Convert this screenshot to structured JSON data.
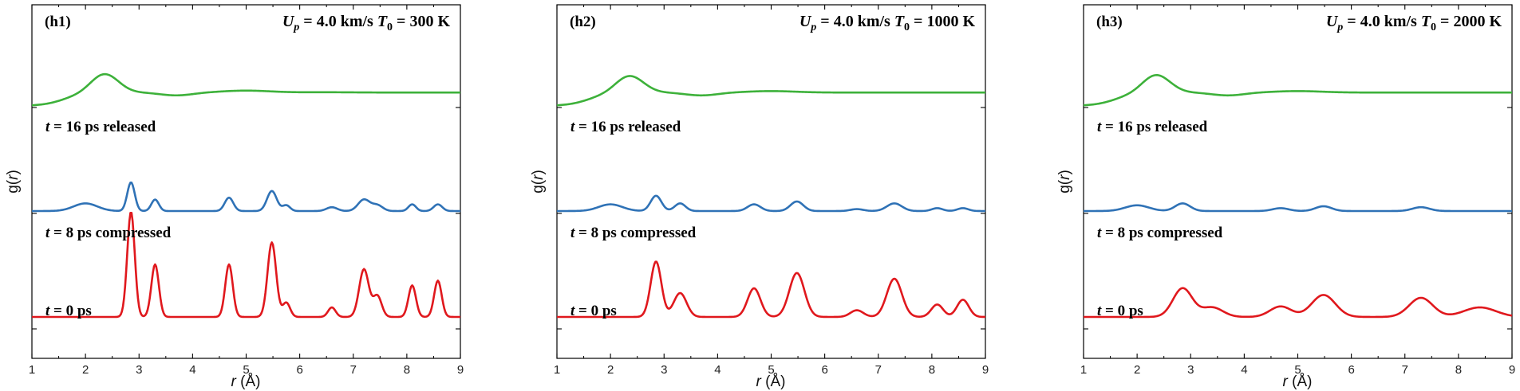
{
  "chart_data": [
    {
      "type": "line",
      "panel": "(h1)",
      "title": "U_p = 4.0 km/s T_0 = 300 K",
      "title_parts": {
        "U": "U",
        "p": "p",
        "mid": " = 4.0 km/s ",
        "T": "T",
        "zero": "0",
        "tail": " = 300 K"
      },
      "xlabel": "r (Å)",
      "xlabel_parts": {
        "var": "r",
        "unit": " (Å)"
      },
      "ylabel": "g(r)",
      "ylabel_parts": {
        "pre": "g(",
        "var": "r",
        "post": ")"
      },
      "xlim": [
        1,
        9
      ],
      "xticks": [
        "1",
        "2",
        "3",
        "4",
        "5",
        "6",
        "7",
        "8",
        "9"
      ],
      "series": [
        {
          "name": "t = 16 ps released",
          "t_label": "t",
          "rest_label": " = 16 ps released",
          "color": "#3db13a",
          "offset": 2.0,
          "peaks": [
            [
              2.35,
              0.2,
              0.26
            ],
            [
              3.7,
              -0.03,
              0.3
            ],
            [
              5.0,
              0.02,
              0.45
            ],
            [
              6.5,
              0.003,
              0.5
            ]
          ],
          "rise_center": 1.6,
          "rise_width": 0.2,
          "plateau": 1.15
        },
        {
          "name": "t = 8 ps compressed",
          "t_label": "t",
          "rest_label": " = 8 ps compressed",
          "color": "#2f72b6",
          "offset": 1.0,
          "peaks": [
            [
              2.0,
              0.08,
              0.22
            ],
            [
              2.85,
              0.3,
              0.07
            ],
            [
              3.3,
              0.12,
              0.07
            ],
            [
              4.68,
              0.14,
              0.08
            ],
            [
              5.48,
              0.21,
              0.09
            ],
            [
              5.75,
              0.06,
              0.07
            ],
            [
              6.6,
              0.04,
              0.1
            ],
            [
              7.2,
              0.12,
              0.11
            ],
            [
              7.45,
              0.06,
              0.1
            ],
            [
              8.1,
              0.07,
              0.07
            ],
            [
              8.58,
              0.07,
              0.08
            ]
          ],
          "rise_center": 1.5,
          "rise_width": 0.2,
          "plateau": 0.0
        },
        {
          "name": "t = 0 ps",
          "t_label": "t",
          "rest_label": " = 0 ps",
          "color": "#e0181d",
          "offset": 0.0,
          "peaks": [
            [
              2.85,
              1.1,
              0.07
            ],
            [
              3.3,
              0.55,
              0.07
            ],
            [
              4.68,
              0.55,
              0.07
            ],
            [
              5.48,
              0.78,
              0.08
            ],
            [
              5.75,
              0.15,
              0.07
            ],
            [
              6.6,
              0.1,
              0.07
            ],
            [
              7.2,
              0.5,
              0.09
            ],
            [
              7.45,
              0.22,
              0.08
            ],
            [
              8.1,
              0.33,
              0.07
            ],
            [
              8.58,
              0.38,
              0.07
            ]
          ],
          "rise_center": 0,
          "rise_width": 0,
          "plateau": 0.0
        }
      ]
    },
    {
      "type": "line",
      "panel": "(h2)",
      "title": "U_p = 4.0 km/s T_0 = 1000 K",
      "title_parts": {
        "U": "U",
        "p": "p",
        "mid": " = 4.0 km/s ",
        "T": "T",
        "zero": "0",
        "tail": " = 1000 K"
      },
      "xlabel": "r (Å)",
      "xlabel_parts": {
        "var": "r",
        "unit": " (Å)"
      },
      "ylabel": "g(r)",
      "ylabel_parts": {
        "pre": "g(",
        "var": "r",
        "post": ")"
      },
      "xlim": [
        1,
        9
      ],
      "xticks": [
        "1",
        "2",
        "3",
        "4",
        "5",
        "6",
        "7",
        "8",
        "9"
      ],
      "series": [
        {
          "name": "t = 16 ps released",
          "t_label": "t",
          "rest_label": " = 16 ps released",
          "color": "#3db13a",
          "offset": 2.0,
          "peaks": [
            [
              2.35,
              0.18,
              0.26
            ],
            [
              3.7,
              -0.03,
              0.3
            ],
            [
              5.0,
              0.015,
              0.45
            ]
          ],
          "rise_center": 1.6,
          "rise_width": 0.2,
          "plateau": 1.15
        },
        {
          "name": "t = 8 ps compressed",
          "t_label": "t",
          "rest_label": " = 8 ps compressed",
          "color": "#2f72b6",
          "offset": 1.0,
          "peaks": [
            [
              2.0,
              0.07,
              0.22
            ],
            [
              2.85,
              0.16,
              0.1
            ],
            [
              3.3,
              0.08,
              0.1
            ],
            [
              4.68,
              0.07,
              0.12
            ],
            [
              5.48,
              0.1,
              0.12
            ],
            [
              6.6,
              0.02,
              0.12
            ],
            [
              7.3,
              0.08,
              0.14
            ],
            [
              8.1,
              0.03,
              0.1
            ],
            [
              8.58,
              0.03,
              0.1
            ]
          ],
          "rise_center": 1.5,
          "rise_width": 0.2,
          "plateau": 0.0
        },
        {
          "name": "t = 0 ps",
          "t_label": "t",
          "rest_label": " = 0 ps",
          "color": "#e0181d",
          "offset": 0.0,
          "peaks": [
            [
              2.85,
              0.58,
              0.1
            ],
            [
              3.3,
              0.25,
              0.12
            ],
            [
              4.68,
              0.3,
              0.12
            ],
            [
              5.48,
              0.46,
              0.14
            ],
            [
              6.6,
              0.07,
              0.12
            ],
            [
              7.3,
              0.4,
              0.14
            ],
            [
              8.1,
              0.13,
              0.11
            ],
            [
              8.58,
              0.18,
              0.11
            ]
          ],
          "rise_center": 0,
          "rise_width": 0,
          "plateau": 0.0
        }
      ]
    },
    {
      "type": "line",
      "panel": "(h3)",
      "title": "U_p = 4.0 km/s T_0 = 2000 K",
      "title_parts": {
        "U": "U",
        "p": "p",
        "mid": " = 4.0 km/s ",
        "T": "T",
        "zero": "0",
        "tail": " = 2000 K"
      },
      "xlabel": "r (Å)",
      "xlabel_parts": {
        "var": "r",
        "unit": " (Å)"
      },
      "ylabel": "g(r)",
      "ylabel_parts": {
        "pre": "g(",
        "var": "r",
        "post": ")"
      },
      "xlim": [
        1,
        9
      ],
      "xticks": [
        "1",
        "2",
        "3",
        "4",
        "5",
        "6",
        "7",
        "8",
        "9"
      ],
      "series": [
        {
          "name": "t = 16 ps released",
          "t_label": "t",
          "rest_label": " = 16 ps released",
          "color": "#3db13a",
          "offset": 2.0,
          "peaks": [
            [
              2.35,
              0.19,
              0.26
            ],
            [
              3.7,
              -0.03,
              0.3
            ],
            [
              5.0,
              0.015,
              0.45
            ]
          ],
          "rise_center": 1.6,
          "rise_width": 0.2,
          "plateau": 1.15
        },
        {
          "name": "t = 8 ps compressed",
          "t_label": "t",
          "rest_label": " = 8 ps compressed",
          "color": "#2f72b6",
          "offset": 1.0,
          "peaks": [
            [
              2.0,
              0.06,
              0.22
            ],
            [
              2.85,
              0.08,
              0.14
            ],
            [
              4.68,
              0.03,
              0.15
            ],
            [
              5.48,
              0.05,
              0.15
            ],
            [
              7.3,
              0.04,
              0.16
            ]
          ],
          "rise_center": 1.5,
          "rise_width": 0.2,
          "plateau": 0.0
        },
        {
          "name": "t = 0 ps",
          "t_label": "t",
          "rest_label": " = 0 ps",
          "color": "#e0181d",
          "offset": 0.0,
          "peaks": [
            [
              2.85,
              0.3,
              0.18
            ],
            [
              3.4,
              0.1,
              0.2
            ],
            [
              4.68,
              0.11,
              0.2
            ],
            [
              5.48,
              0.23,
              0.22
            ],
            [
              7.3,
              0.2,
              0.22
            ],
            [
              8.4,
              0.1,
              0.3
            ]
          ],
          "rise_center": 0,
          "rise_width": 0,
          "plateau": 0.0
        }
      ]
    }
  ]
}
